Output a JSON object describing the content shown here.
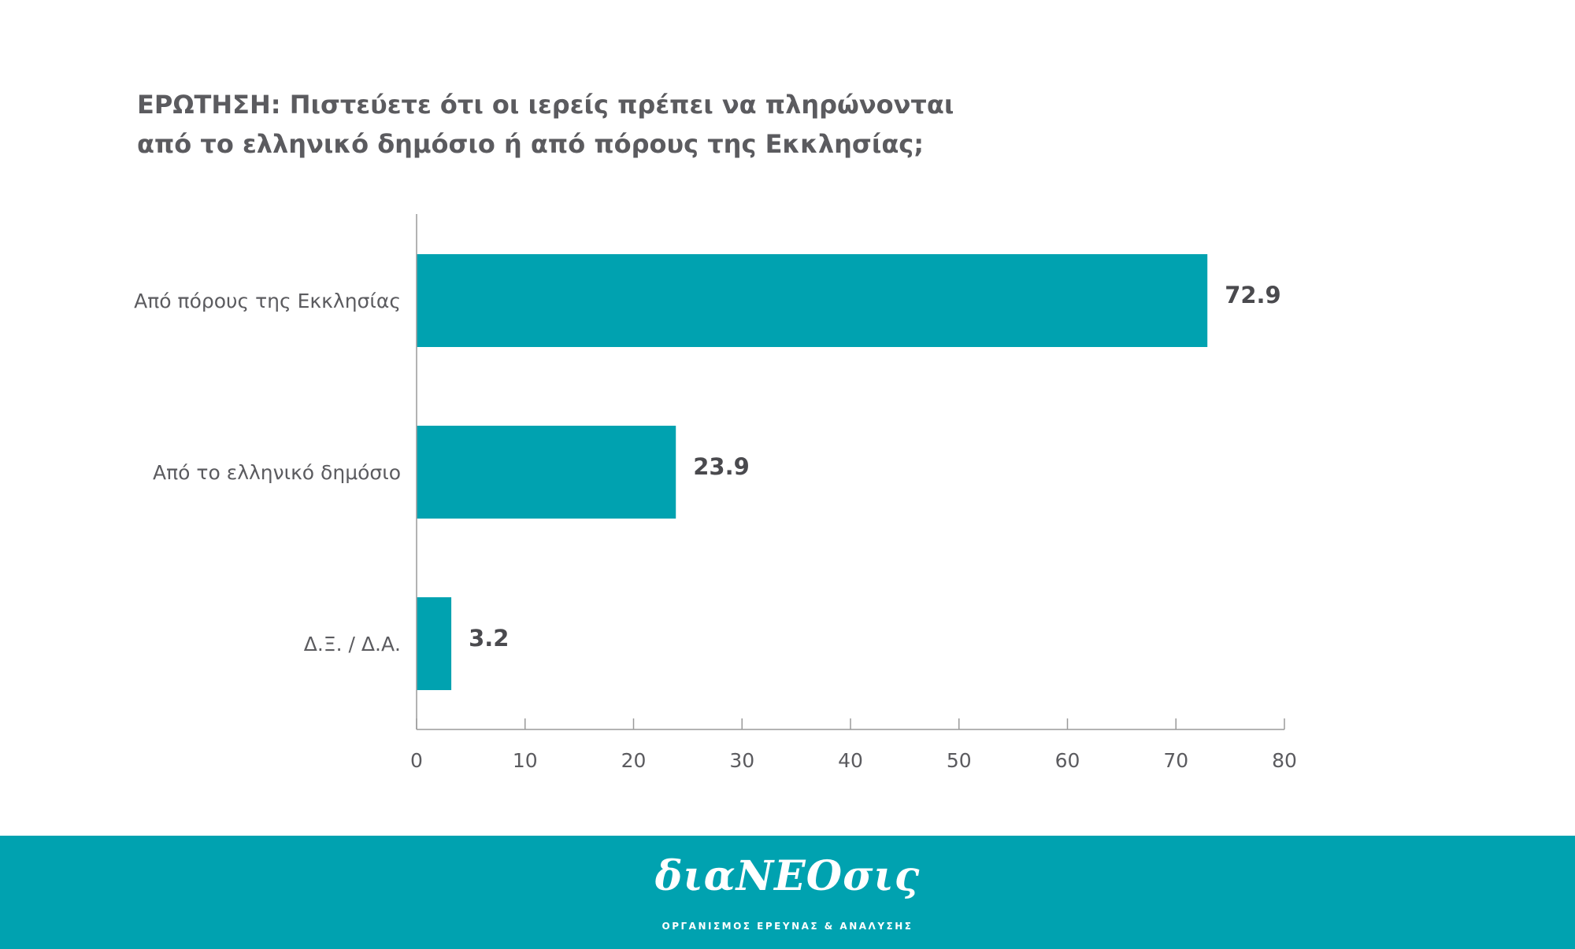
{
  "title_lines": [
    "ΕΡΩΤΗΣΗ: Πιστεύετε ότι οι ιερείς πρέπει να πληρώνονται",
    "από το ελληνικό δημόσιο ή από πόρους της Εκκλησίας;"
  ],
  "chart_data": {
    "type": "bar",
    "orientation": "horizontal",
    "categories": [
      "Από πόρους της Εκκλησίας",
      "Από το ελληνικό δημόσιο",
      "Δ.Ξ. / Δ.Α."
    ],
    "values": [
      72.9,
      23.9,
      3.2
    ],
    "value_labels": [
      "72.9",
      "23.9",
      "3.2"
    ],
    "xlim": [
      0,
      80
    ],
    "xticks": [
      0,
      10,
      20,
      30,
      40,
      50,
      60,
      70,
      80
    ],
    "grid": false,
    "legend": "none",
    "bar_color": "#00a2b0"
  },
  "footer": {
    "logo_text": "διαΝΕΟσις",
    "tagline": "ΟΡΓΑΝΙΣΜΟΣ ΕΡΕΥΝΑΣ & ΑΝΑΛΥΣΗΣ",
    "background_color": "#00a2b0"
  }
}
